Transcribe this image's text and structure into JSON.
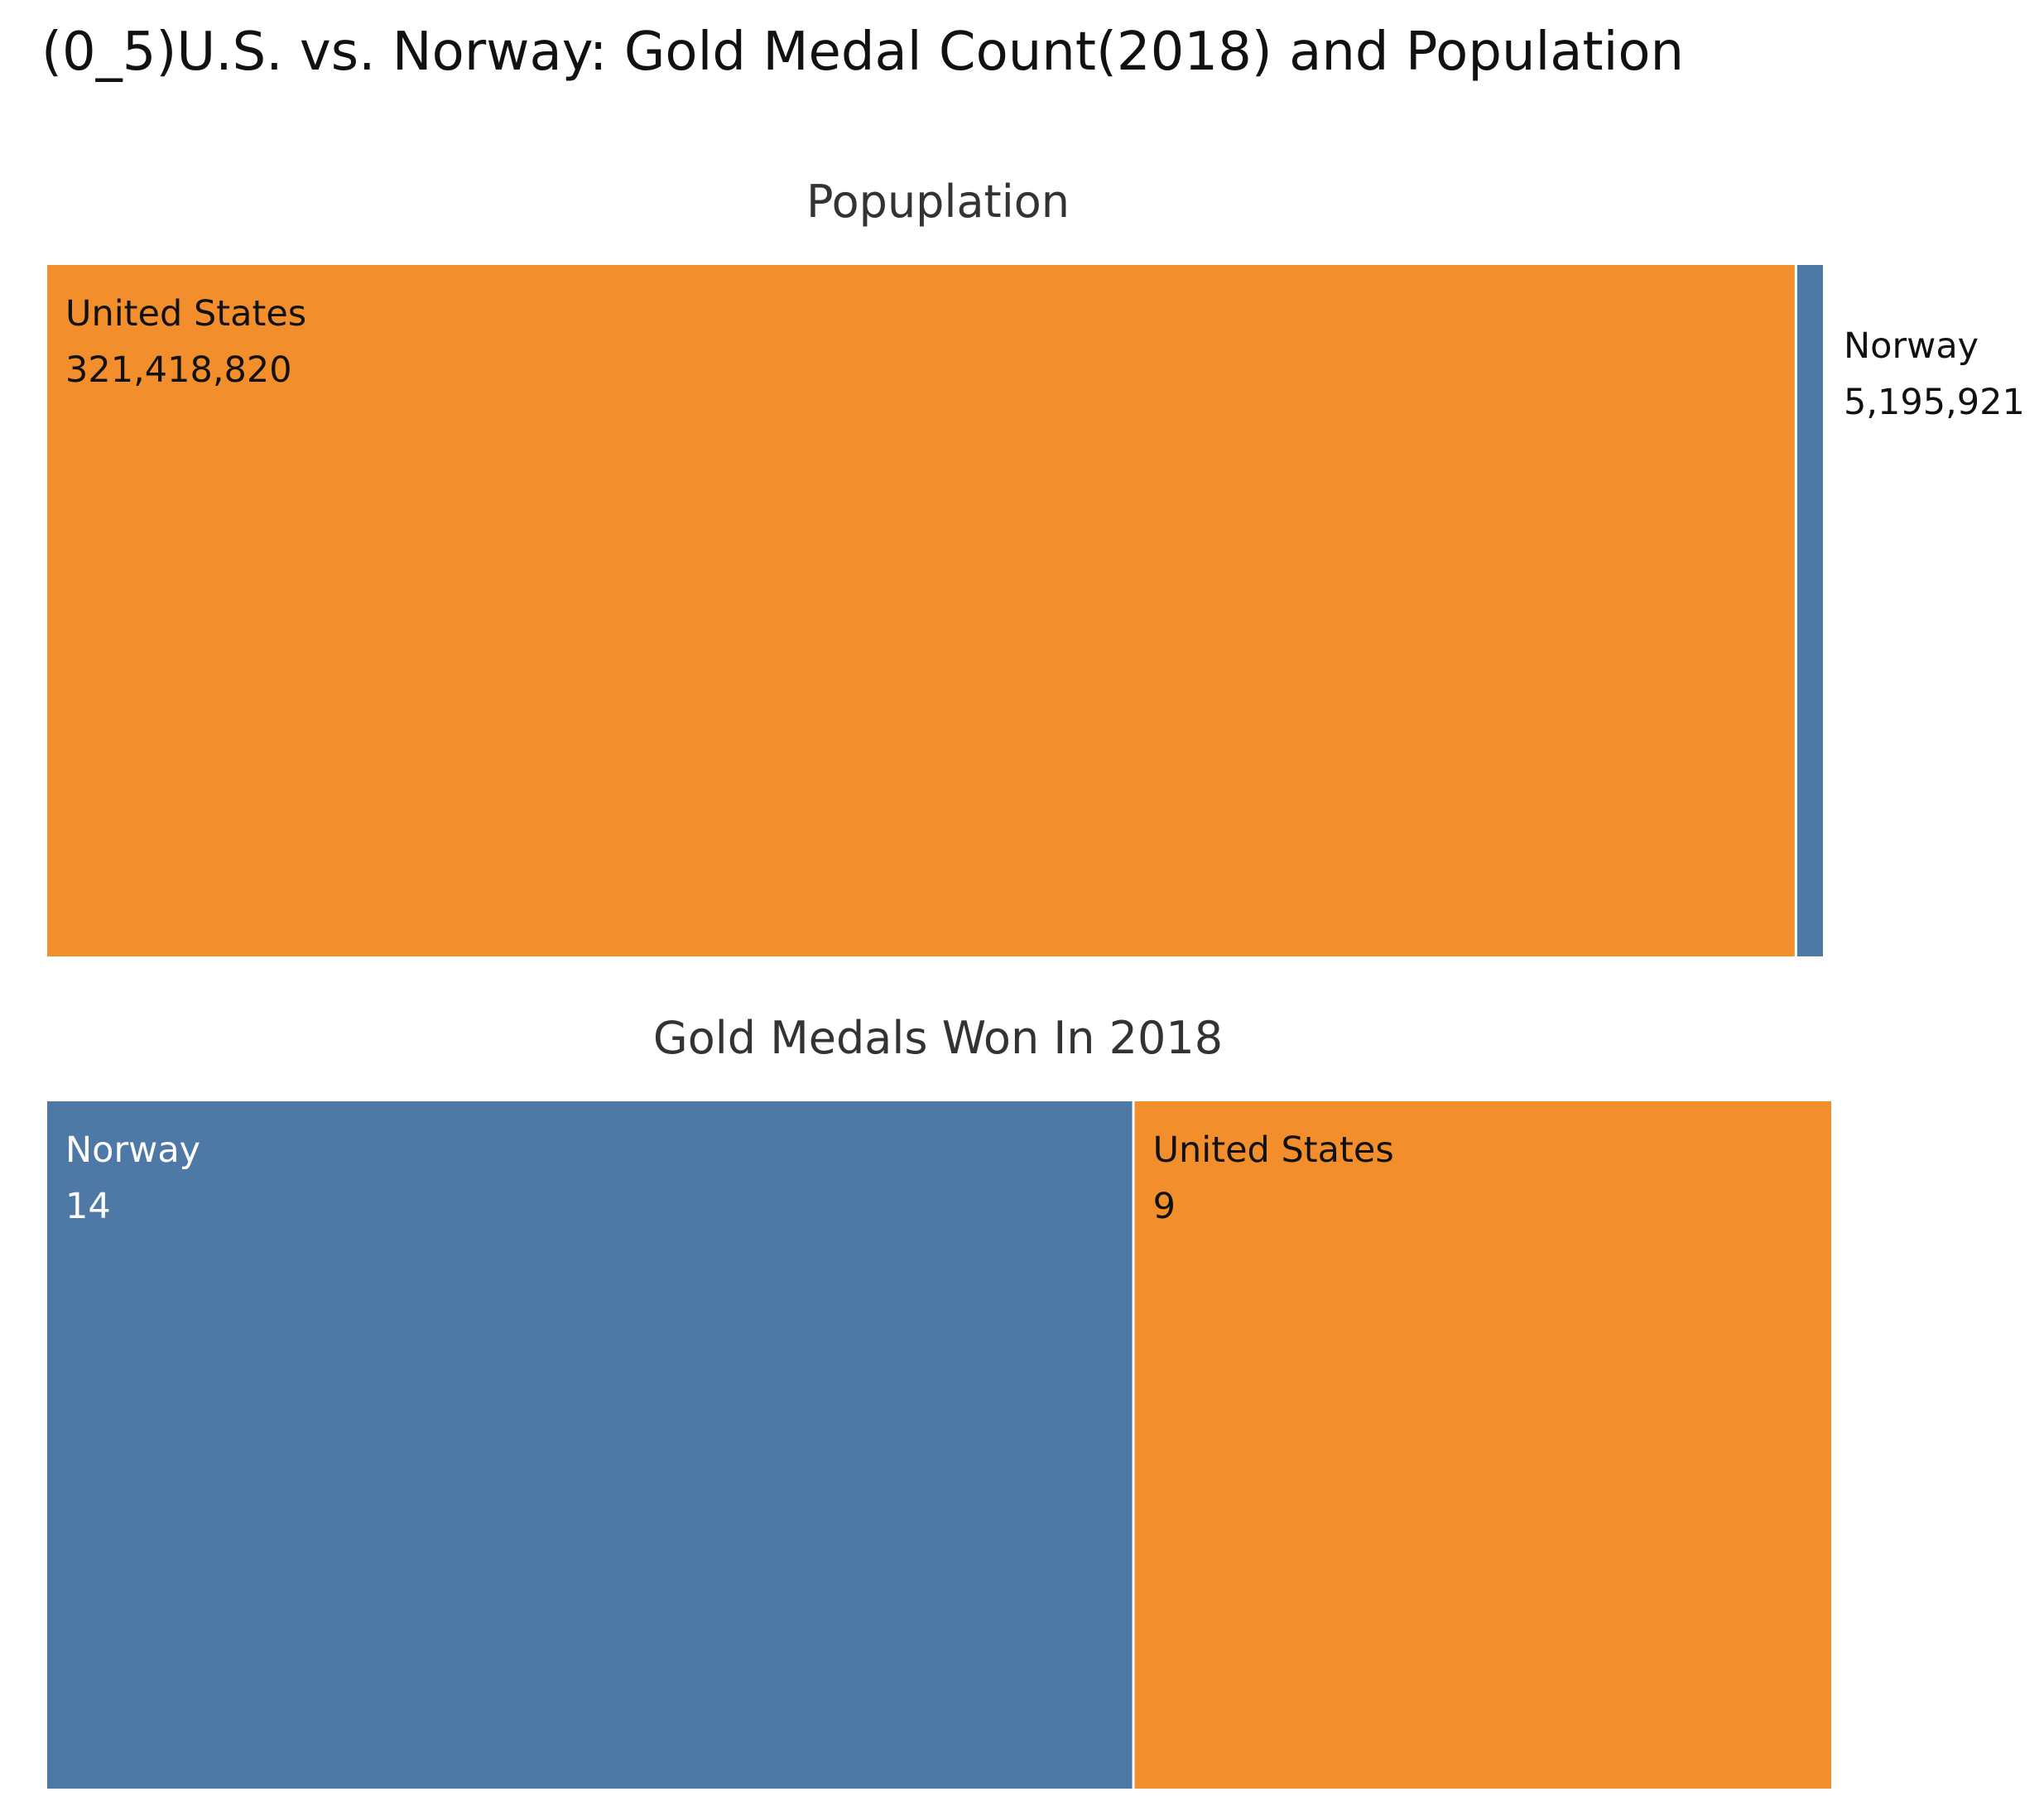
{
  "title": "(0_5)U.S. vs. Norway: Gold Medal Count(2018) and Population",
  "colors": {
    "United States": "#F28E2B",
    "Norway": "#4E79A7"
  },
  "chart_data": [
    {
      "type": "treemap",
      "title": "Popuplation",
      "tiles": [
        {
          "name": "United States",
          "value": 321418820,
          "value_label": "321,418,820",
          "color": "#F28E2B",
          "label_color": "#111111",
          "label_position": "inside"
        },
        {
          "name": "Norway",
          "value": 5195921,
          "value_label": "5,195,921",
          "color": "#4E79A7",
          "label_color": "#111111",
          "label_position": "outside-right"
        }
      ]
    },
    {
      "type": "treemap",
      "title": "Gold Medals Won In 2018",
      "tiles": [
        {
          "name": "Norway",
          "value": 14,
          "value_label": "14",
          "color": "#4E79A7",
          "label_color": "#ffffff",
          "label_position": "inside"
        },
        {
          "name": "United States",
          "value": 9,
          "value_label": "9",
          "color": "#F28E2B",
          "label_color": "#111111",
          "label_position": "inside"
        }
      ]
    }
  ]
}
